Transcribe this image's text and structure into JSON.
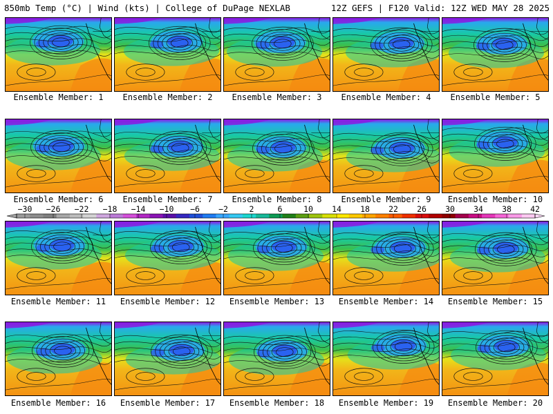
{
  "header": {
    "left_title": "850mb Temp (°C) | Wind (kts) | College of DuPage NEXLAB",
    "right_title": "12Z GEFS | F120 Valid: 12Z WED MAY 28 2025"
  },
  "caption_prefix": "Ensemble Member: ",
  "members": [
    1,
    2,
    3,
    4,
    5,
    6,
    7,
    8,
    9,
    10,
    11,
    12,
    13,
    14,
    15,
    16,
    17,
    18,
    19,
    20
  ],
  "colorbar": {
    "labels": [
      "−30",
      "−26",
      "−22",
      "−18",
      "−14",
      "−10",
      "−6",
      "−2",
      "2",
      "6",
      "10",
      "14",
      "18",
      "22",
      "26",
      "30",
      "34",
      "38",
      "42"
    ],
    "colors": [
      "#9a9a9a",
      "#8c8c8c",
      "#7e7e7e",
      "#a7a7a7",
      "#bcbcbc",
      "#d3d3d3",
      "#cfa7df",
      "#bb7ad6",
      "#d34fd9",
      "#b227c3",
      "#8a13b4",
      "#5a0ea8",
      "#3427c0",
      "#1f4fd8",
      "#1f7bf1",
      "#38a6ff",
      "#35c8f2",
      "#1bd6ce",
      "#16b898",
      "#0c9a53",
      "#1f7f18",
      "#5b9e12",
      "#9cc20d",
      "#d7df06",
      "#ffe800",
      "#ffc800",
      "#ffa400",
      "#ff7f00",
      "#f95900",
      "#ee2e00",
      "#d90b0b",
      "#b00000",
      "#8c0000",
      "#a3004b",
      "#c80b83",
      "#e436b8",
      "#f565d6",
      "#f99ae7",
      "#fbc8f1"
    ]
  },
  "colors": {
    "cold_core": "#2a5ef0",
    "cool": "#29a8ee",
    "mild": "#18c9a6",
    "warm": "#e5e21a",
    "hot": "#f49212",
    "arctic": "#8a1ae0"
  }
}
